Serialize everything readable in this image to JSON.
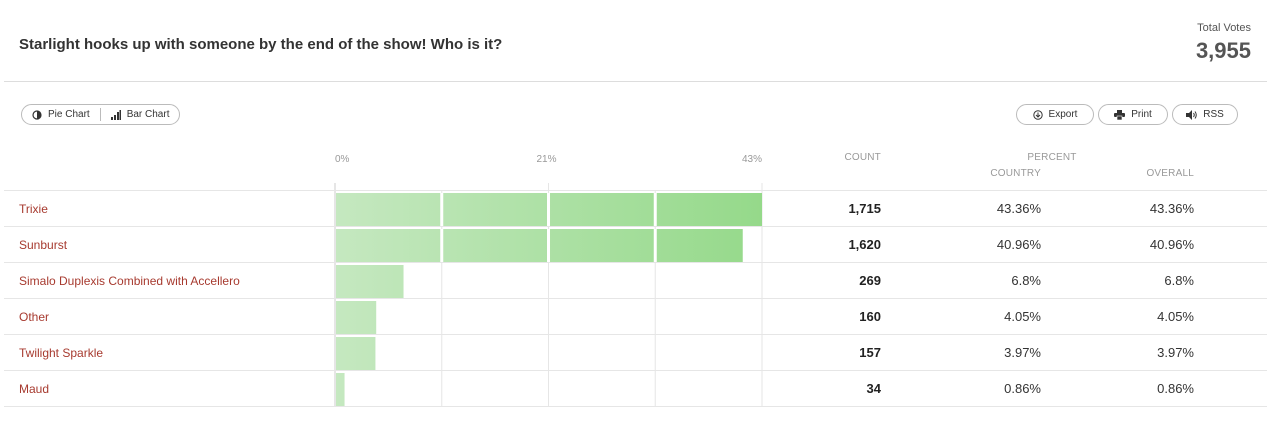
{
  "header": {
    "title": "Starlight hooks up with someone by the end of the show! Who is it?",
    "total_label": "Total Votes",
    "total_value": "3,955"
  },
  "toolbar": {
    "pie_label": "Pie Chart",
    "bar_label": "Bar Chart",
    "export_label": "Export",
    "print_label": "Print",
    "rss_label": "RSS"
  },
  "table": {
    "count_header": "COUNT",
    "percent_header": "PERCENT",
    "country_header": "COUNTRY",
    "overall_header": "OVERALL",
    "rows": [
      {
        "label": "Trixie",
        "count": "1,715",
        "country": "43.36%",
        "overall": "43.36%"
      },
      {
        "label": "Sunburst",
        "count": "1,620",
        "country": "40.96%",
        "overall": "40.96%"
      },
      {
        "label": "Simalo Duplexis Combined with Accellero",
        "count": "269",
        "country": "6.8%",
        "overall": "6.8%"
      },
      {
        "label": "Other",
        "count": "160",
        "country": "4.05%",
        "overall": "4.05%"
      },
      {
        "label": "Twilight Sparkle",
        "count": "157",
        "country": "3.97%",
        "overall": "3.97%"
      },
      {
        "label": "Maud",
        "count": "34",
        "country": "0.86%",
        "overall": "0.86%"
      }
    ]
  },
  "chart_data": {
    "type": "bar",
    "orientation": "horizontal",
    "categories": [
      "Trixie",
      "Sunburst",
      "Simalo Duplexis Combined with Accellero",
      "Other",
      "Twilight Sparkle",
      "Maud"
    ],
    "values": [
      43.36,
      40.96,
      6.8,
      4.05,
      3.97,
      0.86
    ],
    "x_ticks": [
      "0%",
      "21%",
      "43%"
    ],
    "xlim": [
      0,
      43
    ],
    "bar_color_light": "#c5e8c0",
    "bar_color_dark": "#95d98a",
    "grid": true
  }
}
